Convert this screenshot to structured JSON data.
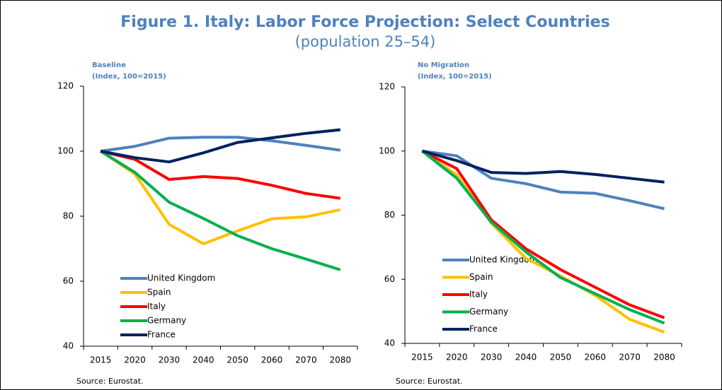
{
  "title": "Figure 1. Italy: Labor Force Projection: Select Countries",
  "subtitle": "(population 25–54)",
  "chart_data": [
    {
      "type": "line",
      "title": "Baseline",
      "subtitle": "(Index, 100=2015)",
      "categories": [
        "2015",
        "2020",
        "2030",
        "2040",
        "2050",
        "2060",
        "2070",
        "2080"
      ],
      "ylim": [
        40,
        120
      ],
      "yticks": [
        40,
        60,
        80,
        100,
        120
      ],
      "series": [
        {
          "name": "United Kingdom",
          "color": "#4f81bd",
          "values": [
            100,
            101.5,
            104,
            104.3,
            104.3,
            103.2,
            101.8,
            100.3
          ]
        },
        {
          "name": "Spain",
          "color": "#ffc000",
          "values": [
            100,
            93,
            77.5,
            71.5,
            75.5,
            79.2,
            79.8,
            82
          ]
        },
        {
          "name": "Italy",
          "color": "#ff0000",
          "values": [
            100,
            97.5,
            91.3,
            92.2,
            91.6,
            89.5,
            87,
            85.5
          ]
        },
        {
          "name": "Germany",
          "color": "#00b050",
          "values": [
            100,
            93.5,
            84.3,
            79.3,
            74,
            70,
            66.8,
            63.5
          ]
        },
        {
          "name": "France",
          "color": "#002060",
          "values": [
            100,
            98,
            96.7,
            99.5,
            102.7,
            104.1,
            105.5,
            106.6
          ]
        }
      ],
      "source": "Source: Eurostat."
    },
    {
      "type": "line",
      "title": "No Migration",
      "subtitle": "(Index, 100=2015)",
      "categories": [
        "2015",
        "2020",
        "2030",
        "2040",
        "2050",
        "2060",
        "2070",
        "2080"
      ],
      "ylim": [
        40,
        120
      ],
      "yticks": [
        40,
        60,
        80,
        100,
        120
      ],
      "series": [
        {
          "name": "United Kingdom",
          "color": "#4f81bd",
          "values": [
            100,
            98.5,
            91.5,
            89.8,
            87.2,
            86.8,
            84.5,
            82
          ]
        },
        {
          "name": "Spain",
          "color": "#ffc000",
          "values": [
            100,
            92.5,
            77.5,
            66.5,
            61,
            55,
            47.5,
            43.5
          ]
        },
        {
          "name": "Italy",
          "color": "#ff0000",
          "values": [
            100,
            94.5,
            78.5,
            69.5,
            63,
            57.5,
            52,
            48
          ]
        },
        {
          "name": "Germany",
          "color": "#00b050",
          "values": [
            100,
            91.5,
            77.8,
            68.5,
            60.5,
            55.5,
            50.5,
            46.3
          ]
        },
        {
          "name": "France",
          "color": "#002060",
          "values": [
            100,
            97,
            93.3,
            93,
            93.6,
            92.7,
            91.5,
            90.3
          ]
        }
      ],
      "source": "Source: Eurostat."
    }
  ]
}
